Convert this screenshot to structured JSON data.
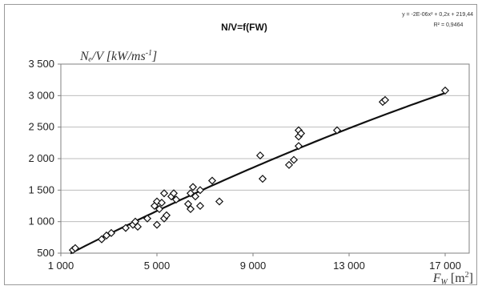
{
  "chart_data": {
    "type": "scatter",
    "title": "N/V=f(FW)",
    "equation": "y = -2E-06x² + 0,2x + 219,44",
    "r_squared": "R² = 0,9464",
    "ylabel_main": "Nₑ/V [kW/ms",
    "ylabel_sup": "-1",
    "ylabel_end": "]",
    "xlabel_main": "F",
    "xlabel_sub": "W",
    "xlabel_unit": " [m",
    "xlabel_sup": "2",
    "xlabel_end": "]",
    "xlim": [
      1000,
      18000
    ],
    "ylim": [
      500,
      3500
    ],
    "x_ticks": [
      1000,
      5000,
      9000,
      13000,
      17000
    ],
    "x_tick_labels": [
      "1 000",
      "5 000",
      "9 000",
      "13 000",
      "17 000"
    ],
    "y_ticks": [
      500,
      1000,
      1500,
      2000,
      2500,
      3000,
      3500
    ],
    "y_tick_labels": [
      "500",
      "1 000",
      "1 500",
      "2 000",
      "2 500",
      "3 000",
      "3 500"
    ],
    "grid": "horizontal",
    "marker": "diamond-open",
    "trendline": {
      "type": "polynomial",
      "a": -2e-06,
      "b": 0.2,
      "c": 219.44
    },
    "points": [
      [
        1500,
        550
      ],
      [
        1600,
        580
      ],
      [
        2700,
        720
      ],
      [
        2900,
        780
      ],
      [
        3100,
        820
      ],
      [
        3700,
        900
      ],
      [
        4000,
        950
      ],
      [
        4100,
        1000
      ],
      [
        4200,
        920
      ],
      [
        4600,
        1050
      ],
      [
        4900,
        1250
      ],
      [
        5000,
        1320
      ],
      [
        5000,
        950
      ],
      [
        5100,
        1200
      ],
      [
        5200,
        1300
      ],
      [
        5300,
        1450
      ],
      [
        5300,
        1050
      ],
      [
        5400,
        1100
      ],
      [
        5600,
        1400
      ],
      [
        5700,
        1450
      ],
      [
        5800,
        1350
      ],
      [
        6300,
        1280
      ],
      [
        6400,
        1450
      ],
      [
        6400,
        1200
      ],
      [
        6500,
        1550
      ],
      [
        6600,
        1400
      ],
      [
        6800,
        1250
      ],
      [
        6800,
        1500
      ],
      [
        7300,
        1650
      ],
      [
        7600,
        1320
      ],
      [
        9300,
        2050
      ],
      [
        9400,
        1680
      ],
      [
        10500,
        1900
      ],
      [
        10700,
        1980
      ],
      [
        10900,
        2200
      ],
      [
        10900,
        2350
      ],
      [
        10900,
        2450
      ],
      [
        11000,
        2400
      ],
      [
        12500,
        2450
      ],
      [
        14400,
        2900
      ],
      [
        14500,
        2930
      ],
      [
        17000,
        3080
      ]
    ]
  }
}
